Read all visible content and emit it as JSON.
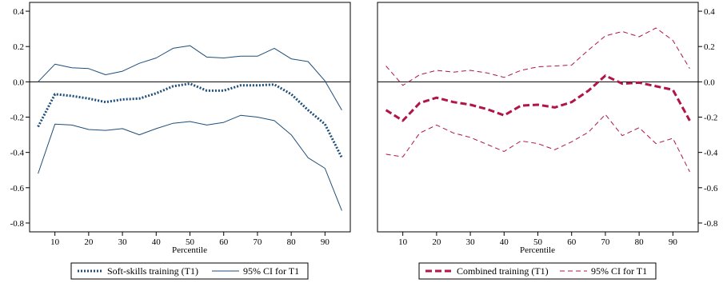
{
  "chart_data": [
    {
      "type": "line",
      "xlabel": "Percentile",
      "ylabel": "",
      "xlim": [
        2.5,
        97.5
      ],
      "ylim": [
        -0.85,
        0.45
      ],
      "xticks": [
        10,
        20,
        30,
        40,
        50,
        60,
        70,
        80,
        90
      ],
      "yticks": [
        -0.8,
        -0.6,
        -0.4,
        -0.2,
        0.0,
        0.2,
        0.4
      ],
      "ytick_labels": [
        "-0.8",
        "-0.6",
        "-0.4",
        "-0.2",
        "0.0",
        "0.2",
        "0.4"
      ],
      "yaxis_side": "left",
      "reference_line": 0,
      "legend_position": "bottom",
      "x": [
        5,
        10,
        15,
        20,
        25,
        30,
        35,
        40,
        45,
        50,
        55,
        60,
        65,
        70,
        75,
        80,
        85,
        90,
        95
      ],
      "series": [
        {
          "name": "Soft-skills training (T1)",
          "style": "dotted",
          "color": "#1f4e79",
          "values": [
            -0.255,
            -0.07,
            -0.08,
            -0.095,
            -0.115,
            -0.1,
            -0.095,
            -0.065,
            -0.025,
            -0.01,
            -0.05,
            -0.05,
            -0.02,
            -0.02,
            -0.015,
            -0.07,
            -0.16,
            -0.24,
            -0.43
          ]
        },
        {
          "name": "95% CI for T1",
          "style": "solid",
          "color": "#1f4e79",
          "values": [
            0.0,
            0.1,
            0.08,
            0.075,
            0.04,
            0.06,
            0.105,
            0.135,
            0.19,
            0.205,
            0.14,
            0.135,
            0.145,
            0.145,
            0.19,
            0.13,
            0.115,
            0.005,
            -0.16
          ]
        },
        {
          "name": "",
          "legend": false,
          "style": "solid",
          "color": "#1f4e79",
          "values": [
            -0.52,
            -0.24,
            -0.245,
            -0.27,
            -0.275,
            -0.265,
            -0.3,
            -0.265,
            -0.235,
            -0.225,
            -0.245,
            -0.23,
            -0.19,
            -0.2,
            -0.22,
            -0.3,
            -0.43,
            -0.49,
            -0.73
          ]
        }
      ]
    },
    {
      "type": "line",
      "xlabel": "Percentile",
      "ylabel": "",
      "xlim": [
        2.5,
        97.5
      ],
      "ylim": [
        -0.85,
        0.45
      ],
      "xticks": [
        10,
        20,
        30,
        40,
        50,
        60,
        70,
        80,
        90
      ],
      "yticks": [
        -0.8,
        -0.6,
        -0.4,
        -0.2,
        0.0,
        0.2,
        0.4
      ],
      "ytick_labels": [
        "-0.8",
        "-0.6",
        "-0.4",
        "-0.2",
        "0.0",
        "0.2",
        "0.4"
      ],
      "yaxis_side": "right",
      "reference_line": 0,
      "legend_position": "bottom",
      "x": [
        5,
        10,
        15,
        20,
        25,
        30,
        35,
        40,
        45,
        50,
        55,
        60,
        65,
        70,
        75,
        80,
        85,
        90,
        95
      ],
      "series": [
        {
          "name": "Combined training (T1)",
          "style": "dashed-thick",
          "color": "#b01548",
          "values": [
            -0.16,
            -0.22,
            -0.12,
            -0.09,
            -0.115,
            -0.13,
            -0.155,
            -0.19,
            -0.135,
            -0.13,
            -0.145,
            -0.115,
            -0.05,
            0.035,
            -0.01,
            -0.005,
            -0.025,
            -0.045,
            -0.22
          ]
        },
        {
          "name": "95% CI for T1",
          "style": "dashed-thin",
          "color": "#b01548",
          "values": [
            0.09,
            -0.02,
            0.04,
            0.065,
            0.055,
            0.065,
            0.05,
            0.025,
            0.065,
            0.085,
            0.09,
            0.095,
            0.18,
            0.26,
            0.285,
            0.255,
            0.305,
            0.235,
            0.075
          ]
        },
        {
          "name": "",
          "legend": false,
          "style": "dashed-thin",
          "color": "#b01548",
          "values": [
            -0.41,
            -0.425,
            -0.29,
            -0.245,
            -0.29,
            -0.315,
            -0.355,
            -0.395,
            -0.335,
            -0.35,
            -0.385,
            -0.34,
            -0.285,
            -0.185,
            -0.305,
            -0.26,
            -0.35,
            -0.32,
            -0.51
          ]
        }
      ]
    }
  ]
}
